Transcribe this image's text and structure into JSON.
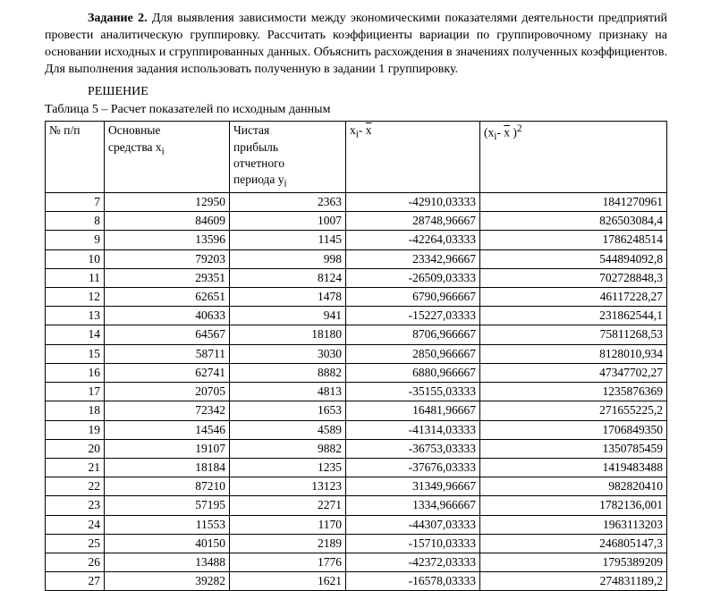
{
  "task": {
    "label": "Задание 2.",
    "text": " Для выявления зависимости между экономическими показателями деятельности предприятий провести аналитическую группировку. Рассчитать коэффициенты вариации по группировочному признаку на основании исходных и сгруппированных данных. Объяснить расхождения в значениях полученных коэффициентов. Для выполнения задания использовать полученную в задании 1 группировку."
  },
  "solution_heading": "РЕШЕНИЕ",
  "table_caption": "Таблица 5 – Расчет показателей по исходным данным",
  "table": {
    "columns": {
      "c1": "№ п/п",
      "c2_line1": "Основные",
      "c2_line2_prefix": "средства x",
      "c2_sub": "i",
      "c3_line1": "Чистая",
      "c3_line2": "прибыль",
      "c3_line3": "отчетного",
      "c3_line4_prefix": "периода y",
      "c3_sub": "i",
      "c4_prefix": "x",
      "c4_sub": "i",
      "c4_mid": "- ",
      "c4_xbar": "x",
      "c5_prefix": "(x",
      "c5_sub": "i",
      "c5_mid": "- ",
      "c5_xbar": "x",
      "c5_suffix": " )",
      "c5_sup": "2"
    },
    "rows": [
      {
        "n": "7",
        "x": "12950",
        "y": "2363",
        "d": "-42910,03333",
        "d2": "1841270961"
      },
      {
        "n": "8",
        "x": "84609",
        "y": "1007",
        "d": "28748,96667",
        "d2": "826503084,4"
      },
      {
        "n": "9",
        "x": "13596",
        "y": "1145",
        "d": "-42264,03333",
        "d2": "1786248514"
      },
      {
        "n": "10",
        "x": "79203",
        "y": "998",
        "d": "23342,96667",
        "d2": "544894092,8"
      },
      {
        "n": "11",
        "x": "29351",
        "y": "8124",
        "d": "-26509,03333",
        "d2": "702728848,3"
      },
      {
        "n": "12",
        "x": "62651",
        "y": "1478",
        "d": "6790,966667",
        "d2": "46117228,27"
      },
      {
        "n": "13",
        "x": "40633",
        "y": "941",
        "d": "-15227,03333",
        "d2": "231862544,1"
      },
      {
        "n": "14",
        "x": "64567",
        "y": "18180",
        "d": "8706,966667",
        "d2": "75811268,53"
      },
      {
        "n": "15",
        "x": "58711",
        "y": "3030",
        "d": "2850,966667",
        "d2": "8128010,934"
      },
      {
        "n": "16",
        "x": "62741",
        "y": "8882",
        "d": "6880,966667",
        "d2": "47347702,27"
      },
      {
        "n": "17",
        "x": "20705",
        "y": "4813",
        "d": "-35155,03333",
        "d2": "1235876369"
      },
      {
        "n": "18",
        "x": "72342",
        "y": "1653",
        "d": "16481,96667",
        "d2": "271655225,2"
      },
      {
        "n": "19",
        "x": "14546",
        "y": "4589",
        "d": "-41314,03333",
        "d2": "1706849350"
      },
      {
        "n": "20",
        "x": "19107",
        "y": "9882",
        "d": "-36753,03333",
        "d2": "1350785459"
      },
      {
        "n": "21",
        "x": "18184",
        "y": "1235",
        "d": "-37676,03333",
        "d2": "1419483488"
      },
      {
        "n": "22",
        "x": "87210",
        "y": "13123",
        "d": "31349,96667",
        "d2": "982820410"
      },
      {
        "n": "23",
        "x": "57195",
        "y": "2271",
        "d": "1334,966667",
        "d2": "1782136,001"
      },
      {
        "n": "24",
        "x": "11553",
        "y": "1170",
        "d": "-44307,03333",
        "d2": "1963113203"
      },
      {
        "n": "25",
        "x": "40150",
        "y": "2189",
        "d": "-15710,03333",
        "d2": "246805147,3"
      },
      {
        "n": "26",
        "x": "13488",
        "y": "1776",
        "d": "-42372,03333",
        "d2": "1795389209"
      },
      {
        "n": "27",
        "x": "39282",
        "y": "1621",
        "d": "-16578,03333",
        "d2": "274831189,2"
      }
    ]
  },
  "style": {
    "background_color": "#ffffff",
    "text_color": "#000000",
    "border_color": "#000000",
    "font_family": "Times New Roman",
    "body_fontsize": 14,
    "table_fontsize": 13.5
  }
}
